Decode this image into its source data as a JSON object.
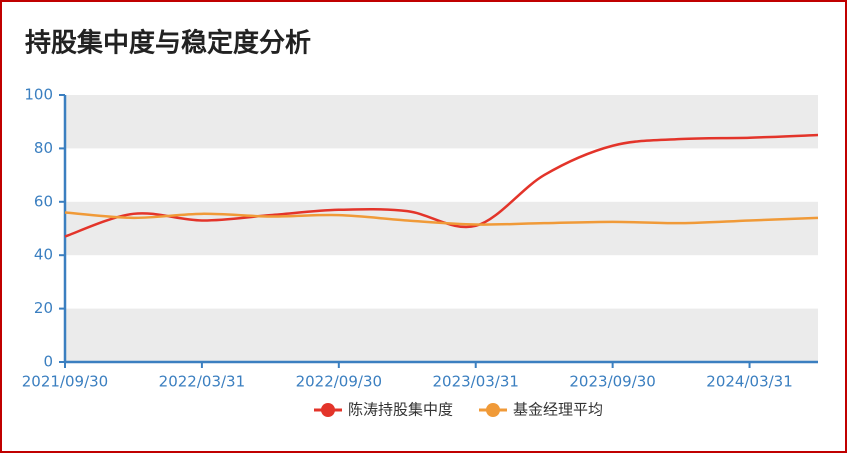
{
  "chart_data": {
    "type": "line",
    "title": "持股集中度与稳定度分析",
    "categories": [
      "2021/09/30",
      null,
      "2022/03/31",
      null,
      "2022/09/30",
      null,
      "2023/03/31",
      null,
      "2023/09/30",
      null,
      "2024/03/31",
      null
    ],
    "series": [
      {
        "name": "陈涛持股集中度",
        "color": "#e3342a",
        "values": [
          47,
          55.5,
          53,
          55,
          57,
          56.5,
          51,
          70,
          81,
          83.5,
          84,
          85
        ]
      },
      {
        "name": "基金经理平均",
        "color": "#f09a38",
        "values": [
          56,
          54,
          55.5,
          54.5,
          55,
          53,
          51.5,
          52,
          52.5,
          52,
          53,
          54
        ]
      }
    ],
    "ylim": [
      0,
      100
    ],
    "yticks": [
      0,
      20,
      40,
      60,
      80,
      100
    ],
    "grid": true,
    "legend": "bottom"
  }
}
